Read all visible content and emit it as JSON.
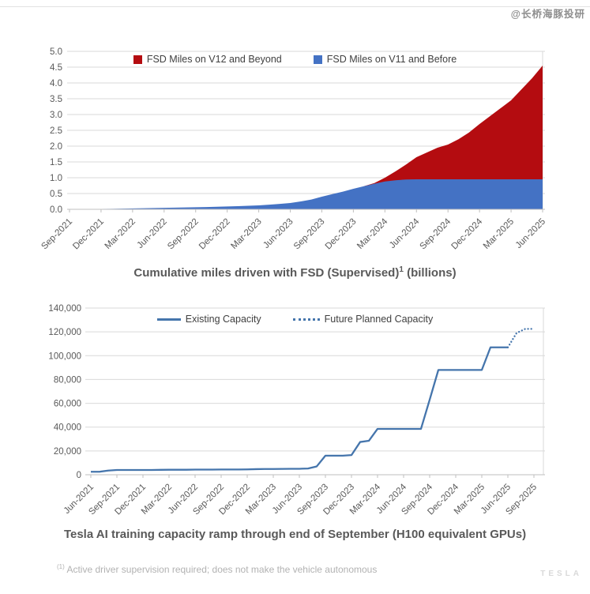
{
  "watermark": "@长桥海豚投研",
  "footnote": {
    "marker": "(1)",
    "text": "Active driver supervision required; does not make the vehicle autonomous"
  },
  "brand_mark": "TESLA",
  "chart_data": [
    {
      "type": "area",
      "stacked": true,
      "title_parts": {
        "main": "Cumulative miles driven with FSD (Supervised)",
        "sup": "1",
        "tail": " (billions)"
      },
      "legend": [
        {
          "label": "FSD Miles on V12 and Beyond",
          "color": "#b40c10"
        },
        {
          "label": "FSD Miles on V11 and Before",
          "color": "#4472c4"
        }
      ],
      "legend_position": "top-center",
      "grid": "horizontal",
      "ylim": [
        0,
        5
      ],
      "y_tick_labels": [
        "0.0",
        "0.5",
        "1.0",
        "1.5",
        "2.0",
        "2.5",
        "3.0",
        "3.5",
        "4.0",
        "4.5",
        "5.0"
      ],
      "x_tick_labels": [
        "Sep-2021",
        "Dec-2021",
        "Mar-2022",
        "Jun-2022",
        "Sep-2022",
        "Dec-2022",
        "Mar-2023",
        "Jun-2023",
        "Sep-2023",
        "Dec-2023",
        "Mar-2024",
        "Jun-2024",
        "Sep-2024",
        "Dec-2024",
        "Mar-2025",
        "Jun-2025"
      ],
      "months_per_tick": 3,
      "series": [
        {
          "name": "FSD Miles on V11 and Before",
          "color": "#4472c4",
          "values": [
            0.003,
            0.006,
            0.009,
            0.013,
            0.017,
            0.022,
            0.028,
            0.034,
            0.04,
            0.047,
            0.053,
            0.059,
            0.065,
            0.072,
            0.08,
            0.09,
            0.1,
            0.112,
            0.125,
            0.148,
            0.172,
            0.2,
            0.25,
            0.31,
            0.4,
            0.48,
            0.56,
            0.65,
            0.73,
            0.81,
            0.88,
            0.92,
            0.945,
            0.95,
            0.95,
            0.95,
            0.95,
            0.95,
            0.95,
            0.95,
            0.95,
            0.95,
            0.95,
            0.95,
            0.95,
            0.95
          ]
        },
        {
          "name": "FSD Miles on V12 and Beyond",
          "color": "#b40c10",
          "values": [
            0,
            0,
            0,
            0,
            0,
            0,
            0,
            0,
            0,
            0,
            0,
            0,
            0,
            0,
            0,
            0,
            0,
            0,
            0,
            0,
            0,
            0,
            0,
            0,
            0,
            0,
            0,
            0,
            0,
            0.02,
            0.12,
            0.28,
            0.47,
            0.7,
            0.85,
            1.0,
            1.1,
            1.27,
            1.48,
            1.75,
            2.0,
            2.25,
            2.5,
            2.85,
            3.2,
            3.6
          ]
        }
      ]
    },
    {
      "type": "line",
      "title": "Tesla AI training capacity ramp through end of September (H100 equivalent GPUs)",
      "legend": [
        {
          "label": "Existing Capacity",
          "style": "solid",
          "color": "#4575ac"
        },
        {
          "label": "Future Planned Capacity",
          "style": "dotted",
          "color": "#4575ac"
        }
      ],
      "legend_position": "top-center",
      "grid": "horizontal",
      "ylim": [
        0,
        140000
      ],
      "y_tick_labels": [
        "0",
        "20,000",
        "40,000",
        "60,000",
        "80,000",
        "100,000",
        "120,000",
        "140,000"
      ],
      "x_tick_labels": [
        "Jun-2021",
        "Sep-2021",
        "Dec-2021",
        "Mar-2022",
        "Jun-2022",
        "Sep-2022",
        "Dec-2022",
        "Mar-2023",
        "Jun-2023",
        "Sep-2023",
        "Dec-2023",
        "Mar-2024",
        "Jun-2024",
        "Sep-2024",
        "Dec-2024",
        "Mar-2025",
        "Jun-2025",
        "Sep-2025"
      ],
      "months_per_tick": 3,
      "series": [
        {
          "name": "Existing Capacity",
          "style": "solid",
          "color": "#4575ac",
          "values": [
            2500,
            2500,
            3500,
            4000,
            4000,
            4000,
            4000,
            4000,
            4100,
            4200,
            4200,
            4200,
            4300,
            4300,
            4300,
            4400,
            4400,
            4400,
            4500,
            4700,
            4800,
            4800,
            4900,
            5000,
            5000,
            5200,
            7000,
            16000,
            16000,
            16000,
            16500,
            27500,
            28500,
            38500,
            38500,
            38500,
            38500,
            38500,
            38500,
            63000,
            88000,
            88000,
            88000,
            88000,
            88000,
            88000,
            107000,
            107000,
            107000,
            null,
            null,
            null
          ]
        },
        {
          "name": "Future Planned Capacity",
          "style": "dotted",
          "color": "#4575ac",
          "values": [
            null,
            null,
            null,
            null,
            null,
            null,
            null,
            null,
            null,
            null,
            null,
            null,
            null,
            null,
            null,
            null,
            null,
            null,
            null,
            null,
            null,
            null,
            null,
            null,
            null,
            null,
            null,
            null,
            null,
            null,
            null,
            null,
            null,
            null,
            null,
            null,
            null,
            null,
            null,
            null,
            null,
            null,
            null,
            null,
            null,
            null,
            null,
            null,
            107000,
            119000,
            122500,
            122500
          ]
        }
      ]
    }
  ]
}
